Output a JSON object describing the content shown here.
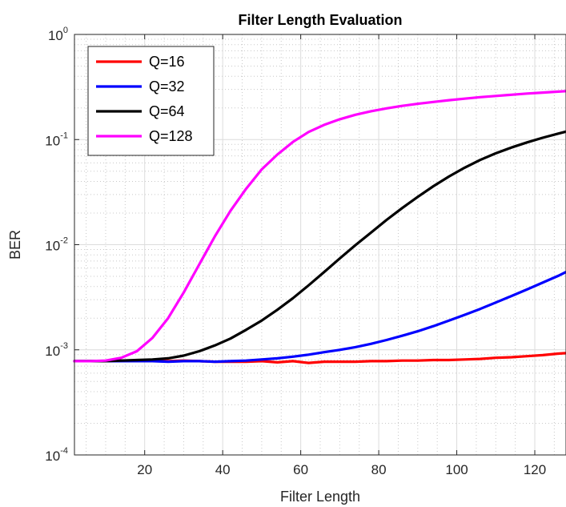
{
  "chart_data": {
    "type": "line",
    "title": "Filter Length Evaluation",
    "xlabel": "Filter Length",
    "ylabel": "BER",
    "xlim": [
      2,
      128
    ],
    "ylim": [
      0.0001,
      1
    ],
    "yscale": "log",
    "grid": true,
    "minor_grid": true,
    "legend_position": "top-left",
    "xticks": [
      "20",
      "40",
      "60",
      "80",
      "100",
      "120"
    ],
    "yticks": [
      {
        "base": "10",
        "exp": "-4"
      },
      {
        "base": "10",
        "exp": "-3"
      },
      {
        "base": "10",
        "exp": "-2"
      },
      {
        "base": "10",
        "exp": "-1"
      },
      {
        "base": "10",
        "exp": "0"
      }
    ],
    "x": [
      2,
      6,
      10,
      14,
      18,
      22,
      26,
      30,
      34,
      38,
      42,
      46,
      50,
      54,
      58,
      62,
      66,
      70,
      74,
      78,
      82,
      86,
      90,
      94,
      98,
      102,
      106,
      110,
      114,
      118,
      122,
      126,
      128
    ],
    "series": [
      {
        "name": "Q=16",
        "color": "#ff0000",
        "values": [
          0.00078,
          0.00078,
          0.00078,
          0.00079,
          0.00079,
          0.00079,
          0.00078,
          0.00079,
          0.00078,
          0.00077,
          0.00077,
          0.00077,
          0.00078,
          0.00076,
          0.00078,
          0.00075,
          0.00077,
          0.00077,
          0.00077,
          0.00078,
          0.00078,
          0.00079,
          0.00079,
          0.0008,
          0.0008,
          0.00081,
          0.00082,
          0.00084,
          0.00085,
          0.00087,
          0.00089,
          0.00092,
          0.00093
        ]
      },
      {
        "name": "Q=32",
        "color": "#0000ff",
        "values": [
          0.00078,
          0.00078,
          0.00078,
          0.00078,
          0.00078,
          0.00078,
          0.00077,
          0.00078,
          0.00078,
          0.00077,
          0.00078,
          0.00079,
          0.00081,
          0.00083,
          0.00086,
          0.0009,
          0.00095,
          0.001,
          0.00106,
          0.00114,
          0.00124,
          0.00136,
          0.0015,
          0.00168,
          0.0019,
          0.00215,
          0.00245,
          0.00282,
          0.00325,
          0.00375,
          0.00435,
          0.00505,
          0.0055
        ]
      },
      {
        "name": "Q=64",
        "color": "#000000",
        "values": [
          0.00078,
          0.00078,
          0.00078,
          0.00079,
          0.0008,
          0.00081,
          0.00083,
          0.00088,
          0.00097,
          0.0011,
          0.00128,
          0.00155,
          0.0019,
          0.0024,
          0.0031,
          0.0041,
          0.0055,
          0.0074,
          0.0099,
          0.013,
          0.0172,
          0.0223,
          0.0285,
          0.036,
          0.0445,
          0.054,
          0.064,
          0.074,
          0.084,
          0.094,
          0.104,
          0.114,
          0.119
        ]
      },
      {
        "name": "Q=128",
        "color": "#ff00ff",
        "values": [
          0.00078,
          0.00078,
          0.00079,
          0.00084,
          0.00097,
          0.0013,
          0.002,
          0.0035,
          0.0065,
          0.012,
          0.021,
          0.034,
          0.052,
          0.072,
          0.095,
          0.118,
          0.138,
          0.156,
          0.172,
          0.186,
          0.198,
          0.209,
          0.219,
          0.228,
          0.237,
          0.245,
          0.253,
          0.26,
          0.267,
          0.274,
          0.28,
          0.286,
          0.289
        ]
      }
    ]
  }
}
